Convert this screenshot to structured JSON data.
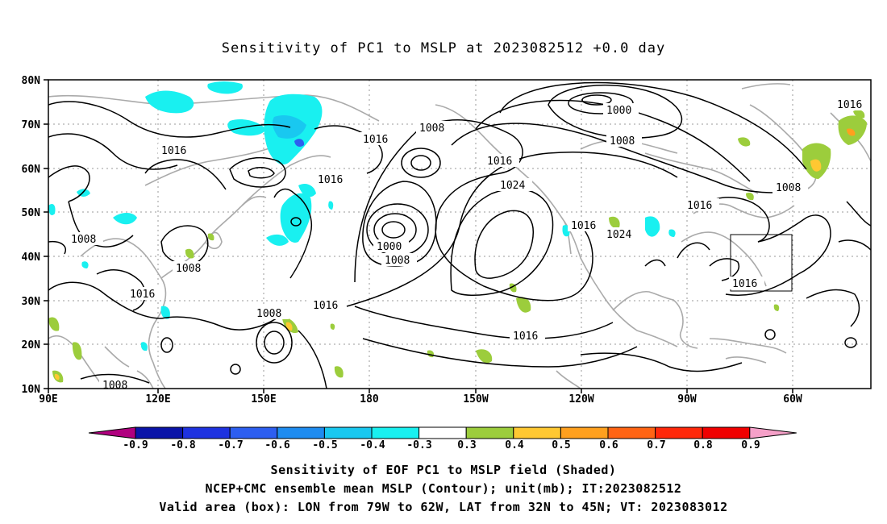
{
  "title": "Sensitivity of PC1 to MSLP at 2023082512 +0.0 day",
  "lat_ticks": [
    "80N",
    "70N",
    "60N",
    "50N",
    "40N",
    "30N",
    "20N",
    "10N"
  ],
  "lon_ticks": [
    "90E",
    "120E",
    "150E",
    "180",
    "150W",
    "120W",
    "90W",
    "60W"
  ],
  "contour_labels": [
    "1016",
    "1000",
    "1008",
    "1016",
    "1008",
    "1016",
    "1016",
    "1008",
    "1016",
    "1024",
    "1000",
    "1008",
    "1016",
    "1024",
    "1016",
    "1008",
    "1008",
    "1016",
    "1008",
    "1016",
    "1016",
    "1008"
  ],
  "colorbar": {
    "labels": [
      "-0.9",
      "-0.8",
      "-0.7",
      "-0.6",
      "-0.5",
      "-0.4",
      "-0.3",
      "0.3",
      "0.4",
      "0.5",
      "0.6",
      "0.7",
      "0.8",
      "0.9"
    ],
    "colors": [
      "#b0007f",
      "#0a14a8",
      "#1e32e0",
      "#2d5ef0",
      "#1e8cf0",
      "#19c8f0",
      "#19f0f0",
      "#ffffff",
      "#9ccd3c",
      "#ffc832",
      "#ffa01e",
      "#ff6414",
      "#ff280a",
      "#f00000",
      "#f5a0c8"
    ]
  },
  "shading_colors": {
    "cyan": "#19f0f0",
    "lightblue": "#19c8f0",
    "blue": "#2d5ef0",
    "green": "#9ccd3c",
    "yellow": "#ffc832",
    "orange": "#ffa01e"
  },
  "captions": [
    "Sensitivity of EOF PC1 to MSLP field (Shaded)",
    "NCEP+CMC ensemble mean MSLP (Contour); unit(mb); IT:2023082512",
    "Valid area (box): LON from 79W to 62W, LAT from 32N to 45N; VT: 2023083012"
  ]
}
